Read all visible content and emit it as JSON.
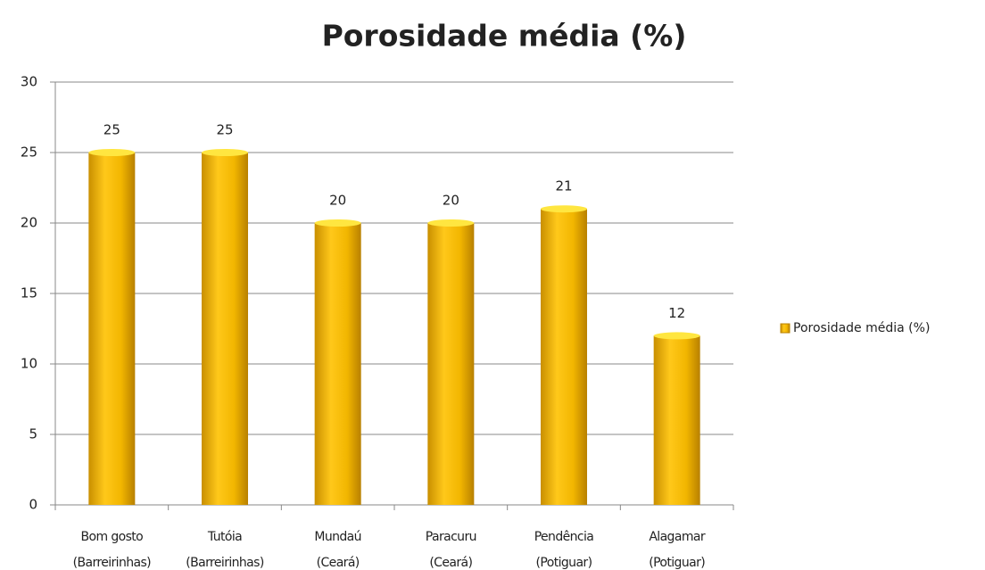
{
  "chart_data": {
    "type": "bar",
    "title": "Porosidade média (%)",
    "categories": [
      [
        "Bom gosto",
        "(Barreirinhas)"
      ],
      [
        "Tutóia",
        "(Barreirinhas)"
      ],
      [
        "Mundaú",
        "(Ceará)"
      ],
      [
        "Paracuru",
        "(Ceará)"
      ],
      [
        "Pendência",
        "(Potiguar)"
      ],
      [
        "Alagamar",
        "(Potiguar)"
      ]
    ],
    "series": [
      {
        "name": "Porosidade média (%)",
        "color": "#f2b600",
        "values": [
          25,
          25,
          20,
          20,
          21,
          12
        ]
      }
    ],
    "ylim": [
      0,
      30
    ],
    "yticks": [
      0,
      5,
      10,
      15,
      20,
      25,
      30
    ],
    "grid": true,
    "legend": "right"
  }
}
